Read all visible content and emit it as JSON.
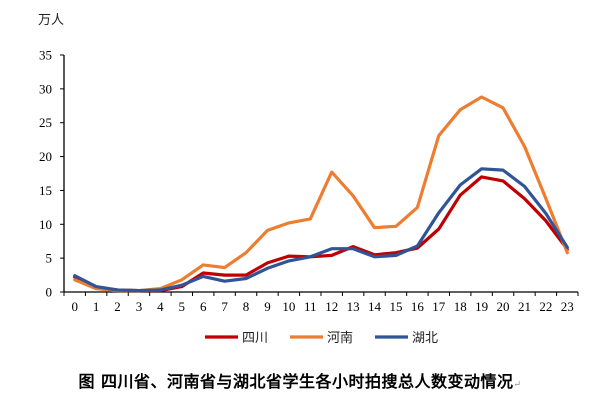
{
  "chart_data": {
    "type": "line",
    "title": "图 四川省、河南省与湖北省学生各小时拍搜总人数变动情况",
    "xlabel": "",
    "ylabel": "万人",
    "x": [
      "0",
      "1",
      "2",
      "3",
      "4",
      "5",
      "6",
      "7",
      "8",
      "9",
      "10",
      "11",
      "12",
      "13",
      "14",
      "15",
      "16",
      "17",
      "18",
      "19",
      "20",
      "21",
      "22",
      "23"
    ],
    "ylim": [
      0,
      35
    ],
    "yticks": [
      0,
      5,
      10,
      15,
      20,
      25,
      30,
      35
    ],
    "grid": false,
    "legend_position": "bottom",
    "series": [
      {
        "name": "四川",
        "color": "#C00000",
        "values": [
          2.2,
          0.7,
          0.3,
          0.2,
          0.2,
          0.8,
          2.8,
          2.5,
          2.5,
          4.3,
          5.3,
          5.2,
          5.4,
          6.7,
          5.5,
          5.8,
          6.5,
          9.3,
          14.3,
          17.0,
          16.4,
          13.8,
          10.5,
          6.3
        ]
      },
      {
        "name": "河南",
        "color": "#ED7D31",
        "values": [
          1.8,
          0.5,
          0.2,
          0.2,
          0.5,
          1.8,
          4.0,
          3.6,
          5.8,
          9.1,
          10.2,
          10.8,
          17.7,
          14.2,
          9.5,
          9.7,
          12.5,
          23.1,
          26.9,
          28.8,
          27.2,
          21.5,
          13.8,
          5.8
        ]
      },
      {
        "name": "湖北",
        "color": "#2F5597",
        "values": [
          2.4,
          0.8,
          0.3,
          0.2,
          0.3,
          1.0,
          2.3,
          1.6,
          2.0,
          3.5,
          4.6,
          5.2,
          6.4,
          6.4,
          5.2,
          5.4,
          6.8,
          11.7,
          15.8,
          18.2,
          18.0,
          15.6,
          11.6,
          6.6
        ]
      }
    ]
  },
  "unit_label": "万人",
  "caption": "图  四川省、河南省与湖北省学生各小时拍搜总人数变动情况",
  "caption_mark": "↵"
}
